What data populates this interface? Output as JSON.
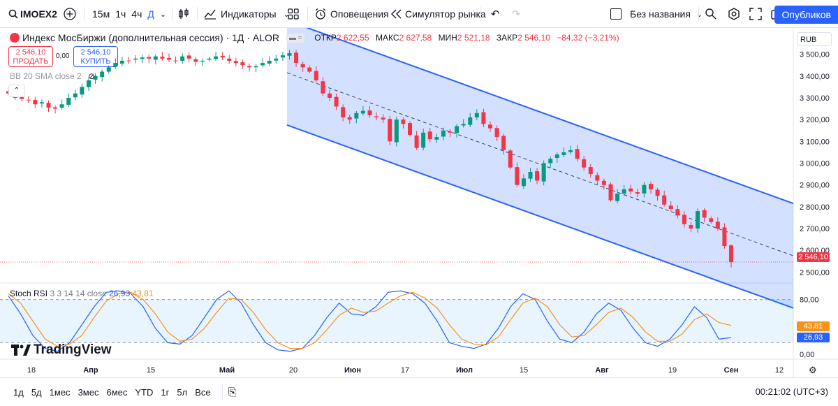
{
  "toolbar": {
    "symbol": "IMOEX2",
    "timeframes": [
      "15м",
      "1ч",
      "4ч",
      "Д"
    ],
    "active_timeframe": "Д",
    "indicators_label": "Индикаторы",
    "alerts_label": "Оповещения",
    "replay_label": "Симулятор рынка",
    "layout_name": "Без названия",
    "publish_label": "Опубликов"
  },
  "legend": {
    "title": "Индекс МосБиржи (дополнительная сессия) · 1Д · ALOR",
    "open_label": "ОТКР",
    "open": "2 622,55",
    "high_label": "МАКС",
    "high": "2 627,58",
    "low_label": "МИН",
    "low": "2 521,18",
    "close_label": "ЗАКР",
    "close": "2 546,10",
    "change": "−84,32 (−3,21%)"
  },
  "trade": {
    "sell_price": "2 546,10",
    "sell_label": "ПРОДАТЬ",
    "spread": "0,00",
    "buy_price": "2 546,10",
    "buy_label": "КУПИТЬ"
  },
  "bb_label": "BB 20 SMA close 2",
  "stoch": {
    "label": "Stoch RSI",
    "params": "3 3 14 14 close",
    "k": "26,93",
    "d": "43,81"
  },
  "currency": "RUB",
  "price_axis": [
    "3 500,00",
    "3 400,00",
    "3 300,00",
    "3 200,00",
    "3 100,00",
    "3 000,00",
    "2 900,00",
    "2 800,00",
    "2 700,00",
    "2 600,00",
    "2 500,00"
  ],
  "last_price": "2 546,10",
  "stoch_axis": [
    "80,00",
    "0,00"
  ],
  "stoch_tags": {
    "d": "43,81",
    "k": "26,93"
  },
  "time_axis": [
    "18",
    "Апр",
    "15",
    "Май",
    "20",
    "Июн",
    "17",
    "Июл",
    "15",
    "Авг",
    "19",
    "Сен",
    "12"
  ],
  "ranges": [
    "1д",
    "5д",
    "1мес",
    "3мес",
    "6мес",
    "YTD",
    "1г",
    "5л",
    "Все"
  ],
  "clock": "00:21:02 (UTC+3)",
  "brand": "TradingView",
  "colors": {
    "up": "#089981",
    "down": "#f23645",
    "channel": "#2962ff",
    "k_line": "#2962ff",
    "d_line": "#f7931a"
  },
  "chart_data": {
    "type": "candlestick",
    "indicator": "Stochastic RSI",
    "ohlc_last": {
      "open": 2622.55,
      "high": 2627.58,
      "low": 2521.18,
      "close": 2546.1
    },
    "y_range": [
      2450,
      3550
    ],
    "closes": [
      3320,
      3300,
      3295,
      3290,
      3270,
      3280,
      3255,
      3250,
      3270,
      3300,
      3320,
      3350,
      3380,
      3400,
      3420,
      3440,
      3460,
      3470,
      3470,
      3480,
      3485,
      3480,
      3490,
      3480,
      3475,
      3470,
      3490,
      3480,
      3465,
      3470,
      3480,
      3490,
      3485,
      3470,
      3460,
      3450,
      3440,
      3445,
      3460,
      3470,
      3480,
      3495,
      3505,
      3460,
      3440,
      3420,
      3380,
      3320,
      3300,
      3260,
      3210,
      3200,
      3230,
      3240,
      3220,
      3210,
      3200,
      3100,
      3200,
      3180,
      3130,
      3070,
      3140,
      3110,
      3120,
      3150,
      3140,
      3170,
      3180,
      3210,
      3230,
      3180,
      3160,
      3120,
      3060,
      2980,
      2900,
      2930,
      2960,
      2920,
      3000,
      3020,
      3040,
      3050,
      3060,
      3020,
      2980,
      2950,
      2920,
      2900,
      2830,
      2860,
      2880,
      2870,
      2860,
      2900,
      2880,
      2850,
      2810,
      2790,
      2760,
      2720,
      2700,
      2780,
      2750,
      2730,
      2700,
      2620,
      2546
    ],
    "stoch_k": [
      85,
      60,
      30,
      12,
      8,
      20,
      45,
      70,
      90,
      92,
      88,
      70,
      40,
      20,
      18,
      30,
      55,
      80,
      92,
      75,
      45,
      20,
      10,
      8,
      12,
      30,
      55,
      75,
      60,
      58,
      70,
      90,
      92,
      88,
      75,
      50,
      20,
      15,
      12,
      18,
      40,
      70,
      88,
      80,
      50,
      25,
      20,
      35,
      60,
      75,
      65,
      40,
      20,
      15,
      25,
      45,
      70,
      55,
      25,
      27
    ],
    "stoch_d": [
      88,
      75,
      50,
      25,
      15,
      18,
      30,
      55,
      78,
      88,
      90,
      80,
      60,
      35,
      22,
      25,
      40,
      62,
      82,
      80,
      62,
      38,
      20,
      12,
      12,
      20,
      38,
      58,
      68,
      62,
      64,
      75,
      85,
      90,
      82,
      68,
      45,
      25,
      18,
      17,
      28,
      52,
      75,
      82,
      70,
      45,
      28,
      30,
      45,
      62,
      68,
      55,
      35,
      22,
      22,
      32,
      52,
      60,
      48,
      44
    ]
  }
}
